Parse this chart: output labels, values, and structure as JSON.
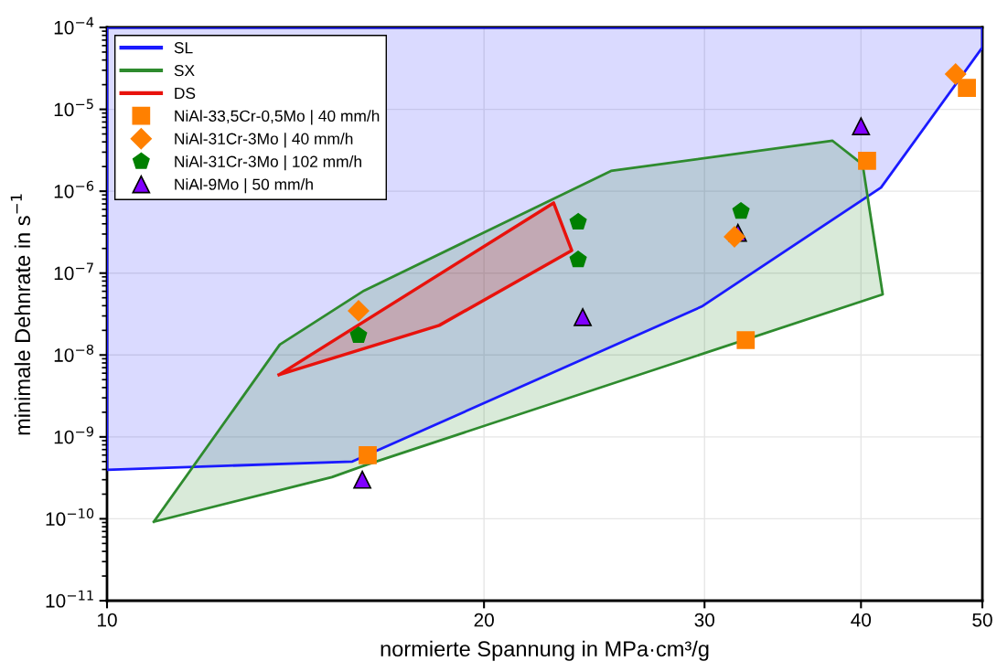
{
  "chart_data": {
    "type": "scatter",
    "xlabel": "normierte Spannung in MPa·cm³/g",
    "ylabel": "minimale Dehnrate in s$^{−1}$",
    "log": "xy",
    "grid": true,
    "legend": "top left",
    "xlim": [
      10,
      50
    ],
    "xticks": [
      10,
      20,
      30,
      40,
      50
    ],
    "ylim": [
      1e-11,
      0.0001
    ],
    "yticks": [
      {
        "value": 1e-11,
        "label": "10$^{−11}$"
      },
      {
        "value": 1e-10,
        "label": "10$^{−10}$"
      },
      {
        "value": 1e-09,
        "label": "10$^{−9}$"
      },
      {
        "value": 1e-08,
        "label": "10$^{−8}$"
      },
      {
        "value": 1e-07,
        "label": "10$^{−7}$"
      },
      {
        "value": 1e-06,
        "label": "10$^{−6}$"
      },
      {
        "value": 1e-05,
        "label": "10$^{−5}$"
      },
      {
        "value": 0.0001,
        "label": "10$^{−4}$"
      }
    ],
    "series": [
      {
        "name": "SL",
        "type": "area",
        "color": "#1a1aff",
        "x": [
          10,
          15.7,
          29.84,
          41.5,
          50,
          50,
          10,
          10
        ],
        "values": [
          3.96e-10,
          5e-10,
          3.9e-08,
          1.11e-06,
          5.7e-05,
          0.0001,
          0.0001,
          3.96e-10
        ]
      },
      {
        "name": "SX",
        "type": "area",
        "color": "#2e8b2e",
        "x": [
          10.9,
          13.74,
          16.04,
          25.26,
          37.96,
          40.12,
          41.63,
          16.15,
          15.12,
          10.9
        ],
        "values": [
          9.2e-11,
          1.34e-08,
          6.1e-08,
          1.77e-06,
          4.13e-06,
          2.12e-06,
          5.5e-08,
          4.62e-10,
          3.23e-10,
          9.2e-11
        ]
      },
      {
        "name": "DS",
        "type": "area",
        "color": "#e8120c",
        "x": [
          13.72,
          22.73,
          23.5,
          18.42,
          13.72
        ],
        "values": [
          5.74e-09,
          7.2e-07,
          1.89e-07,
          2.3e-08,
          5.74e-09
        ]
      },
      {
        "name": "NiAl-33,5Cr-0,5Mo | 40 mm/h",
        "marker": "square",
        "color": "#ff8000",
        "x": [
          16.15,
          32.36,
          40.45,
          48.6
        ],
        "values": [
          5.98e-10,
          1.52e-08,
          2.35e-06,
          1.83e-05
        ]
      },
      {
        "name": "NiAl-31Cr-3Mo | 40 mm/h",
        "marker": "diamond",
        "color": "#ff8000",
        "x": [
          15.88,
          31.7,
          47.6
        ],
        "values": [
          3.47e-08,
          2.78e-07,
          2.7e-05
        ]
      },
      {
        "name": "NiAl-31Cr-3Mo | 102 mm/h",
        "color": "#008000",
        "x": [
          15.88,
          23.78,
          23.78,
          32.08
        ],
        "values": [
          1.73e-08,
          4.2e-07,
          1.46e-07,
          5.7e-07
        ]
      },
      {
        "name": "NiAl-9Mo | 50 mm/h",
        "marker": "triangle",
        "color": "#8000ff",
        "x": [
          15.99,
          23.98,
          31.9,
          40.0
        ],
        "values": [
          3e-10,
          2.9e-08,
          3.1e-07,
          6.2e-06
        ]
      }
    ]
  }
}
